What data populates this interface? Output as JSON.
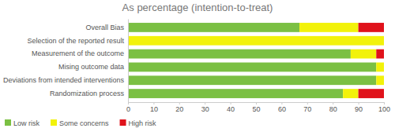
{
  "chart_data": {
    "type": "bar",
    "title": "As percentage (intention-to-treat)",
    "orientation": "horizontal",
    "stacked": true,
    "grid": false,
    "legend": "bottom",
    "data_labels": false,
    "categories": [
      "Overall Bias",
      "Selection of the reported result",
      "Measurement of the outcome",
      "Mising outcome data",
      "Deviations from intended interventions",
      "Randomization process"
    ],
    "series": [
      {
        "name": "Low risk",
        "color": "#7bc043",
        "values": [
          67,
          0,
          87,
          97,
          97,
          84
        ]
      },
      {
        "name": "Some concerns",
        "color": "#f2f20a",
        "values": [
          23,
          100,
          10,
          3,
          3,
          6
        ]
      },
      {
        "name": "High risk",
        "color": "#e0121b",
        "values": [
          10,
          0,
          3,
          0,
          0,
          10
        ]
      }
    ],
    "xlim": [
      0,
      100
    ],
    "xticks": [
      0,
      10,
      20,
      30,
      40,
      50,
      60,
      70,
      80,
      90,
      100
    ]
  }
}
